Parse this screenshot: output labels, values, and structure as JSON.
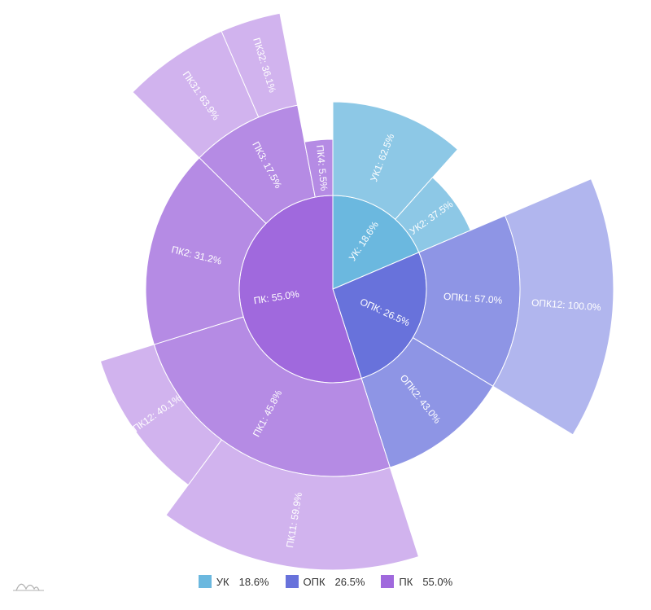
{
  "chart_data": {
    "type": "sunburst",
    "title": "",
    "levels": [
      {
        "name": "УК",
        "value": 18.6,
        "label": "УК: 18.6%",
        "color": "#6bb8df",
        "children": [
          {
            "name": "УК1",
            "value": 62.5,
            "label": "УК1: 62.5%",
            "color": "#8dc8e6",
            "depth": 1.0
          },
          {
            "name": "УК2",
            "value": 37.5,
            "label": "УК2: 37.5%",
            "color": "#8dc8e6",
            "depth": 0.6
          }
        ]
      },
      {
        "name": "ОПК",
        "value": 26.5,
        "label": "ОПК: 26.5%",
        "color": "#6872db",
        "children": [
          {
            "name": "ОПК1",
            "value": 57.0,
            "label": "ОПК1: 57.0%",
            "color": "#8e95e5",
            "depth": 1.0,
            "children": [
              {
                "name": "ОПК12",
                "value": 100.0,
                "label": "ОПК12: 100.0%",
                "color": "#b1b6ee",
                "depth": 1.0
              }
            ]
          },
          {
            "name": "ОПК2",
            "value": 43.0,
            "label": "ОПК2: 43.0%",
            "color": "#8e95e5",
            "depth": 1.0
          }
        ]
      },
      {
        "name": "ПК",
        "value": 55.0,
        "label": "ПК: 55.0%",
        "color": "#a069dd",
        "children": [
          {
            "name": "ПК1",
            "value": 45.8,
            "label": "ПК1: 45.8%",
            "color": "#b58be4",
            "depth": 1.0,
            "children": [
              {
                "name": "ПК11",
                "value": 59.9,
                "label": "ПК11: 59.9%",
                "color": "#d1b3ee",
                "depth": 1.0
              },
              {
                "name": "ПК12",
                "value": 40.1,
                "label": "ПК12: 40.1%",
                "color": "#d1b3ee",
                "depth": 0.6
              }
            ]
          },
          {
            "name": "ПК2",
            "value": 31.2,
            "label": "ПК2: 31.2%",
            "color": "#b58be4",
            "depth": 1.0
          },
          {
            "name": "ПК3",
            "value": 17.5,
            "label": "ПК3: 17.5%",
            "color": "#b58be4",
            "depth": 1.0,
            "children": [
              {
                "name": "ПК31",
                "value": 63.9,
                "label": "ПК31: 63.9%",
                "color": "#d1b3ee",
                "depth": 1.0
              },
              {
                "name": "ПК32",
                "value": 36.1,
                "label": "ПК32: 36.1%",
                "color": "#d1b3ee",
                "depth": 1.0
              }
            ]
          },
          {
            "name": "ПК4",
            "value": 5.5,
            "label": "ПК4: 5.5%",
            "color": "#b58be4",
            "depth": 0.6
          }
        ]
      }
    ]
  },
  "legend": {
    "position": "bottom-center",
    "items": [
      {
        "name": "УК",
        "value": "18.6%",
        "color": "#6bb8df"
      },
      {
        "name": "ОПК",
        "value": "26.5%",
        "color": "#6872db"
      },
      {
        "name": "ПК",
        "value": "55.0%",
        "color": "#a069dd"
      }
    ]
  }
}
